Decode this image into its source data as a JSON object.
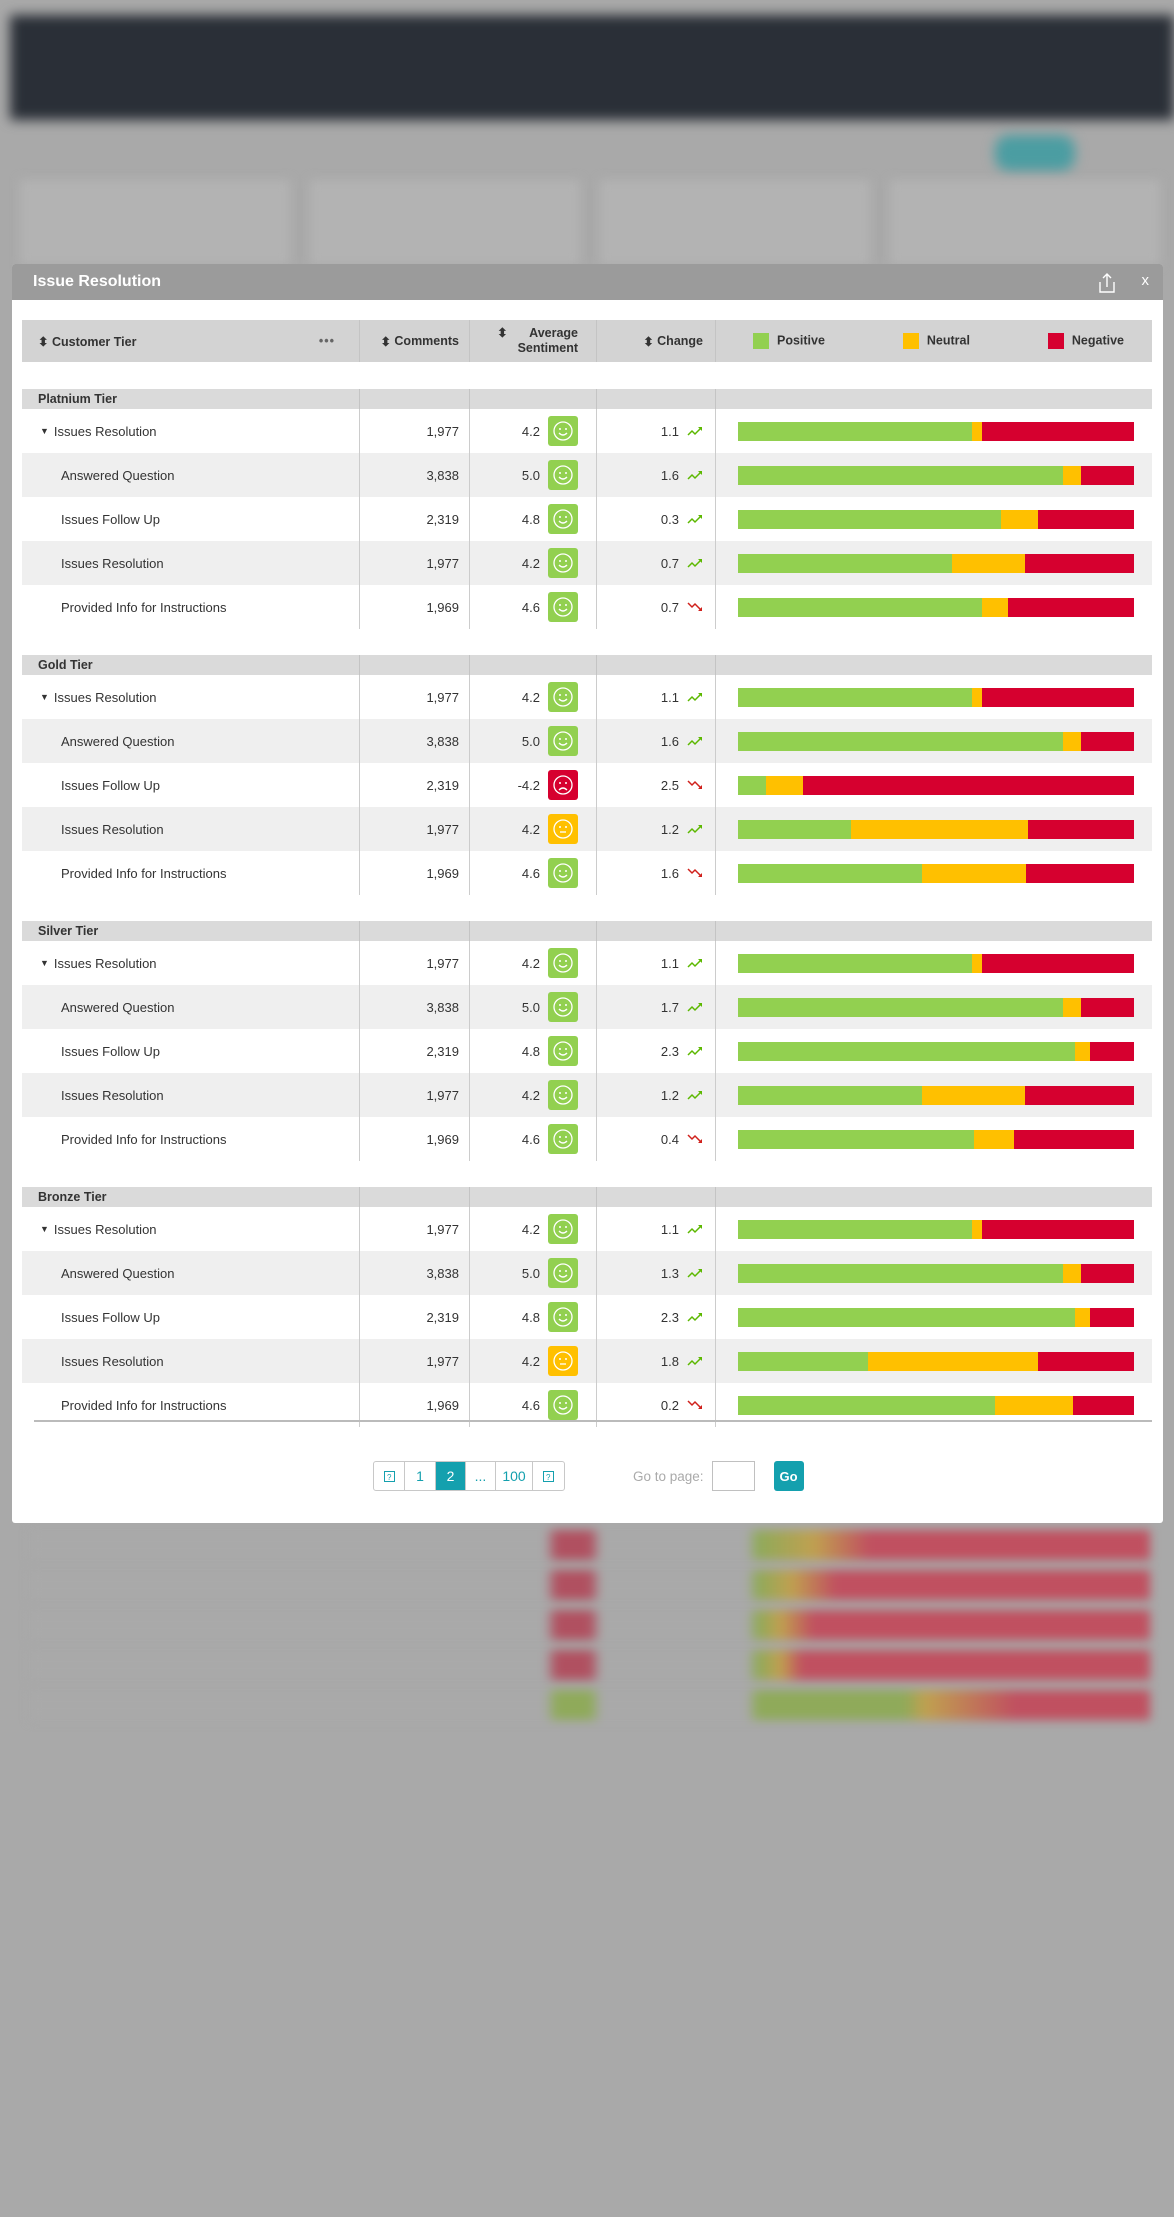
{
  "modal": {
    "title": "Issue Resolution",
    "close_label": "x"
  },
  "columns": {
    "tier": "Customer Tier",
    "comments": "Comments",
    "avg_line1": "Average",
    "avg_line2": "Sentiment",
    "change": "Change",
    "more": "•••"
  },
  "legend": [
    {
      "label": "Positive",
      "color": "#92d050"
    },
    {
      "label": "Neutral",
      "color": "#ffc000"
    },
    {
      "label": "Negative",
      "color": "#d6002f"
    }
  ],
  "sentiment_colors": {
    "positive": "#92d050",
    "neutral": "#ffc000",
    "negative": "#d6002f"
  },
  "trend_colors": {
    "up": "#5cb800",
    "down": "#d0211c"
  },
  "tiers": [
    {
      "name": "Platnium Tier",
      "rows": [
        {
          "label": "Issues Resolution",
          "comments": "1,977",
          "avg": "4.2",
          "face": "happy",
          "face_color": "positive",
          "change": "1.1",
          "trend": "up",
          "pos": 59,
          "neu": 2.5,
          "neg": 38.5
        },
        {
          "label": "Answered Question",
          "comments": "3,838",
          "avg": "5.0",
          "face": "happy",
          "face_color": "positive",
          "change": "1.6",
          "trend": "up",
          "pos": 82,
          "neu": 4.6,
          "neg": 13.4
        },
        {
          "label": "Issues Follow Up",
          "comments": "2,319",
          "avg": "4.8",
          "face": "happy",
          "face_color": "positive",
          "change": "0.3",
          "trend": "up",
          "pos": 66.5,
          "neu": 9.3,
          "neg": 24.2
        },
        {
          "label": "Issues Resolution",
          "comments": "1,977",
          "avg": "4.2",
          "face": "happy",
          "face_color": "positive",
          "change": "0.7",
          "trend": "up",
          "pos": 54,
          "neu": 18.6,
          "neg": 27.4
        },
        {
          "label": "Provided Info for Instructions",
          "comments": "1,969",
          "avg": "4.6",
          "face": "happy",
          "face_color": "positive",
          "change": "0.7",
          "trend": "down",
          "pos": 61.5,
          "neu": 6.8,
          "neg": 31.7
        }
      ]
    },
    {
      "name": "Gold Tier",
      "rows": [
        {
          "label": "Issues Resolution",
          "comments": "1,977",
          "avg": "4.2",
          "face": "happy",
          "face_color": "positive",
          "change": "1.1",
          "trend": "up",
          "pos": 59,
          "neu": 2.5,
          "neg": 38.5
        },
        {
          "label": "Answered Question",
          "comments": "3,838",
          "avg": "5.0",
          "face": "happy",
          "face_color": "positive",
          "change": "1.6",
          "trend": "up",
          "pos": 82,
          "neu": 4.6,
          "neg": 13.4
        },
        {
          "label": "Issues Follow Up",
          "comments": "2,319",
          "avg": "-4.2",
          "face": "sad",
          "face_color": "negative",
          "change": "2.5",
          "trend": "down",
          "pos": 7,
          "neu": 9.3,
          "neg": 83.7
        },
        {
          "label": "Issues Resolution",
          "comments": "1,977",
          "avg": "4.2",
          "face": "neutral",
          "face_color": "neutral",
          "change": "1.2",
          "trend": "up",
          "pos": 28.6,
          "neu": 44.6,
          "neg": 26.8
        },
        {
          "label": "Provided Info for Instructions",
          "comments": "1,969",
          "avg": "4.6",
          "face": "happy",
          "face_color": "positive",
          "change": "1.6",
          "trend": "down",
          "pos": 46.4,
          "neu": 26.4,
          "neg": 27.2
        }
      ]
    },
    {
      "name": "Silver Tier",
      "rows": [
        {
          "label": "Issues Resolution",
          "comments": "1,977",
          "avg": "4.2",
          "face": "happy",
          "face_color": "positive",
          "change": "1.1",
          "trend": "up",
          "pos": 59,
          "neu": 2.5,
          "neg": 38.5
        },
        {
          "label": "Answered Question",
          "comments": "3,838",
          "avg": "5.0",
          "face": "happy",
          "face_color": "positive",
          "change": "1.7",
          "trend": "up",
          "pos": 82,
          "neu": 4.6,
          "neg": 13.4
        },
        {
          "label": "Issues Follow Up",
          "comments": "2,319",
          "avg": "4.8",
          "face": "happy",
          "face_color": "positive",
          "change": "2.3",
          "trend": "up",
          "pos": 85,
          "neu": 4,
          "neg": 11
        },
        {
          "label": "Issues Resolution",
          "comments": "1,977",
          "avg": "4.2",
          "face": "happy",
          "face_color": "positive",
          "change": "1.2",
          "trend": "up",
          "pos": 46.4,
          "neu": 26,
          "neg": 27.6
        },
        {
          "label": "Provided Info for Instructions",
          "comments": "1,969",
          "avg": "4.6",
          "face": "happy",
          "face_color": "positive",
          "change": "0.4",
          "trend": "down",
          "pos": 59.6,
          "neu": 10,
          "neg": 30.4
        }
      ]
    },
    {
      "name": "Bronze Tier",
      "rows": [
        {
          "label": "Issues Resolution",
          "comments": "1,977",
          "avg": "4.2",
          "face": "happy",
          "face_color": "positive",
          "change": "1.1",
          "trend": "up",
          "pos": 59,
          "neu": 2.5,
          "neg": 38.5
        },
        {
          "label": "Answered Question",
          "comments": "3,838",
          "avg": "5.0",
          "face": "happy",
          "face_color": "positive",
          "change": "1.3",
          "trend": "up",
          "pos": 82,
          "neu": 4.6,
          "neg": 13.4
        },
        {
          "label": "Issues Follow Up",
          "comments": "2,319",
          "avg": "4.8",
          "face": "happy",
          "face_color": "positive",
          "change": "2.3",
          "trend": "up",
          "pos": 85,
          "neu": 4,
          "neg": 11
        },
        {
          "label": "Issues Resolution",
          "comments": "1,977",
          "avg": "4.2",
          "face": "neutral",
          "face_color": "neutral",
          "change": "1.8",
          "trend": "up",
          "pos": 32.9,
          "neu": 42.9,
          "neg": 24.2
        },
        {
          "label": "Provided Info for Instructions",
          "comments": "1,969",
          "avg": "4.6",
          "face": "happy",
          "face_color": "positive",
          "change": "0.2",
          "trend": "down",
          "pos": 65,
          "neu": 19.6,
          "neg": 15.4
        }
      ]
    }
  ],
  "pagination": {
    "pages": [
      "1",
      "2",
      "...",
      "100"
    ],
    "current": "2",
    "goto_label": "Go to page:",
    "goto_value": "",
    "go_button": "Go"
  }
}
